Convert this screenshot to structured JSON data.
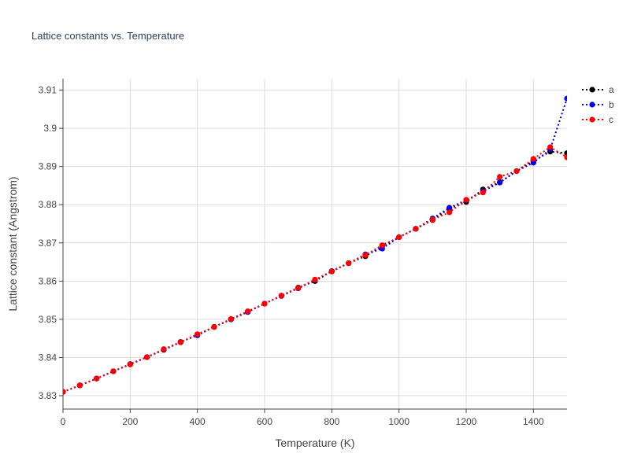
{
  "chart_data": {
    "type": "line",
    "title": "Lattice constants vs. Temperature",
    "xlabel": "Temperature (K)",
    "ylabel": "Lattice constant (Angstrom)",
    "xlim": [
      0,
      1500
    ],
    "ylim": [
      3.8265,
      3.913
    ],
    "x_ticks": [
      0,
      200,
      400,
      600,
      800,
      1000,
      1200,
      1400
    ],
    "x_tick_labels": [
      "0",
      "200",
      "400",
      "600",
      "800",
      "1000",
      "1200",
      "1400"
    ],
    "y_ticks": [
      3.83,
      3.84,
      3.85,
      3.86,
      3.87,
      3.88,
      3.89,
      3.9,
      3.91
    ],
    "y_tick_labels": [
      "3.83",
      "3.84",
      "3.85",
      "3.86",
      "3.87",
      "3.88",
      "3.89",
      "3.9",
      "3.91"
    ],
    "grid": true,
    "legend_position": "top-right",
    "line_style": "dotted",
    "x": [
      0,
      50,
      100,
      150,
      200,
      250,
      300,
      350,
      400,
      450,
      500,
      550,
      600,
      650,
      700,
      750,
      800,
      850,
      900,
      950,
      1000,
      1050,
      1100,
      1150,
      1200,
      1250,
      1300,
      1350,
      1400,
      1450,
      1500
    ],
    "series": [
      {
        "name": "a",
        "color": "#000000",
        "values": [
          3.831,
          3.8327,
          3.8345,
          3.8364,
          3.8382,
          3.8401,
          3.842,
          3.844,
          3.846,
          3.848,
          3.85,
          3.852,
          3.8541,
          3.8562,
          3.8583,
          3.86,
          3.8626,
          3.8647,
          3.8665,
          3.8692,
          3.8715,
          3.8737,
          3.876,
          3.879,
          3.8807,
          3.884,
          3.8859,
          3.8888,
          3.8915,
          3.8939,
          3.8935
        ]
      },
      {
        "name": "b",
        "color": "#0000ee",
        "values": [
          3.831,
          3.8327,
          3.8345,
          3.8364,
          3.8383,
          3.8401,
          3.8421,
          3.8441,
          3.8458,
          3.848,
          3.85,
          3.8519,
          3.8541,
          3.8561,
          3.8581,
          3.8603,
          3.8626,
          3.8647,
          3.867,
          3.8685,
          3.8715,
          3.8737,
          3.8764,
          3.8792,
          3.8812,
          3.8835,
          3.8858,
          3.8888,
          3.891,
          3.8945,
          3.9078
        ]
      },
      {
        "name": "c",
        "color": "#ff0000",
        "values": [
          3.831,
          3.8327,
          3.8345,
          3.8364,
          3.8382,
          3.8401,
          3.8422,
          3.844,
          3.8461,
          3.848,
          3.8501,
          3.8521,
          3.8541,
          3.8562,
          3.8582,
          3.8604,
          3.8625,
          3.8647,
          3.8668,
          3.8694,
          3.8715,
          3.8737,
          3.8761,
          3.878,
          3.8813,
          3.8832,
          3.8873,
          3.8888,
          3.892,
          3.8951,
          3.8924
        ]
      }
    ]
  }
}
